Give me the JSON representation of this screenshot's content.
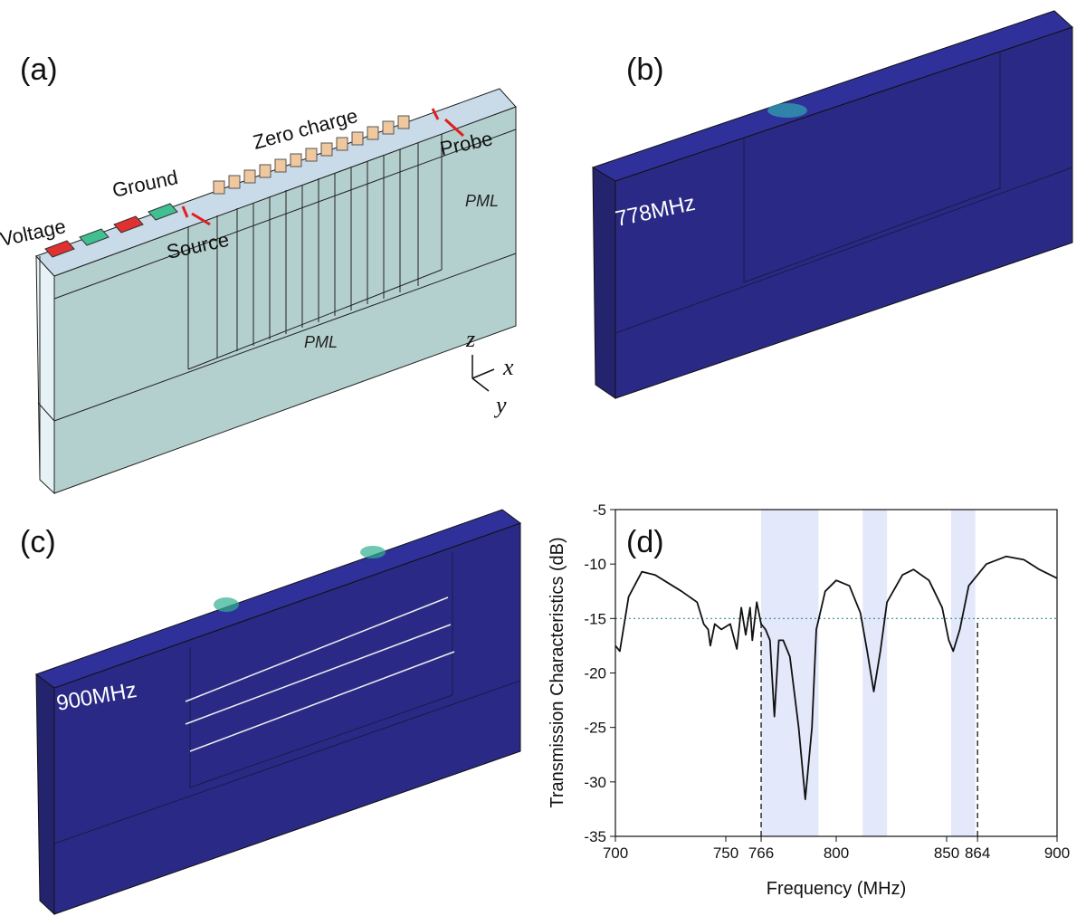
{
  "panel_a": {
    "label": "(a)",
    "annotations": [
      "Voltage",
      "Ground",
      "Zero charge",
      "Source",
      "Probe",
      "PML",
      "PML"
    ],
    "axes": [
      "z",
      "x",
      "y"
    ]
  },
  "panel_b": {
    "label": "(b)",
    "frequency": "778MHz"
  },
  "panel_c": {
    "label": "(c)",
    "frequency": "900MHz"
  },
  "chart_data": {
    "type": "line",
    "label": "(d)",
    "xlabel": "Frequency (MHz)",
    "ylabel": "Transmission Characteristics (dB)",
    "xlim": [
      700,
      900
    ],
    "ylim": [
      -35,
      -5
    ],
    "xticks": [
      700,
      750,
      766,
      800,
      850,
      864,
      900
    ],
    "yticks": [
      -35,
      -30,
      -25,
      -20,
      -15,
      -10,
      -5
    ],
    "color": "#111111",
    "x": [
      700,
      702,
      706,
      712,
      718,
      730,
      737,
      740,
      742,
      743,
      745,
      748,
      752,
      755,
      757,
      759,
      761,
      762,
      764,
      766,
      768,
      770,
      772,
      774,
      776,
      779,
      783,
      786,
      789,
      791,
      795,
      800,
      806,
      811,
      814,
      817,
      820,
      823,
      830,
      835,
      842,
      848,
      851,
      853,
      856,
      860,
      868,
      877,
      885,
      892,
      900
    ],
    "values": [
      -17.5,
      -18,
      -13,
      -10.7,
      -11,
      -12.5,
      -13.5,
      -15.5,
      -16,
      -17.5,
      -15.5,
      -16,
      -15.5,
      -17.8,
      -14,
      -16.5,
      -14,
      -17,
      -13.5,
      -15.5,
      -16,
      -17,
      -24,
      -17,
      -17,
      -18.5,
      -25,
      -31.6,
      -25,
      -16,
      -12.5,
      -11.5,
      -12,
      -14.5,
      -18,
      -21.7,
      -18,
      -13.5,
      -11,
      -10.5,
      -11.5,
      -14,
      -17,
      -18,
      -16,
      -12,
      -10,
      -9.3,
      -9.6,
      -10.5,
      -11.3
    ],
    "threshold": -15,
    "bands": [
      [
        766,
        792
      ],
      [
        812,
        823
      ],
      [
        852,
        863
      ]
    ],
    "band_color": "#e4e8fb",
    "vlines": [
      766,
      864
    ]
  }
}
